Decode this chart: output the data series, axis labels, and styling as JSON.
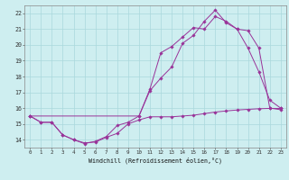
{
  "xlabel": "Windchill (Refroidissement éolien,°C)",
  "bg_color": "#ceeef0",
  "grid_color": "#aad8dc",
  "line_color": "#993399",
  "xlim": [
    -0.5,
    23.5
  ],
  "ylim": [
    13.5,
    22.5
  ],
  "ytick_vals": [
    14,
    15,
    16,
    17,
    18,
    19,
    20,
    21,
    22
  ],
  "ytick_labels": [
    "14",
    "15",
    "16",
    "17",
    "18",
    "19",
    "20",
    "21",
    "22"
  ],
  "xtick_vals": [
    0,
    1,
    2,
    3,
    4,
    5,
    6,
    7,
    8,
    9,
    10,
    11,
    12,
    13,
    14,
    15,
    16,
    17,
    18,
    19,
    20,
    21,
    22,
    23
  ],
  "xtick_labels": [
    "0",
    "1",
    "2",
    "3",
    "4",
    "5",
    "6",
    "7",
    "8",
    "9",
    "10",
    "11",
    "12",
    "13",
    "14",
    "15",
    "16",
    "17",
    "18",
    "19",
    "20",
    "21",
    "22",
    "23"
  ],
  "line1_x": [
    0,
    1,
    2,
    3,
    4,
    5,
    6,
    7,
    8,
    9,
    10,
    11,
    12,
    13,
    14,
    15,
    16,
    17,
    18,
    19,
    20,
    21,
    22,
    23
  ],
  "line1_y": [
    15.5,
    15.1,
    15.1,
    14.3,
    14.0,
    13.8,
    13.85,
    14.15,
    14.4,
    15.0,
    15.25,
    15.45,
    15.45,
    15.45,
    15.5,
    15.55,
    15.65,
    15.75,
    15.82,
    15.88,
    15.92,
    15.96,
    15.98,
    15.98
  ],
  "line2_x": [
    0,
    1,
    2,
    3,
    4,
    5,
    6,
    7,
    8,
    9,
    10,
    11,
    12,
    13,
    14,
    15,
    16,
    17,
    18,
    19,
    20,
    21,
    22,
    23
  ],
  "line2_y": [
    15.5,
    15.1,
    15.1,
    14.3,
    14.0,
    13.75,
    13.9,
    14.2,
    14.9,
    15.1,
    15.5,
    17.2,
    19.5,
    19.9,
    20.5,
    21.1,
    21.0,
    21.8,
    21.5,
    21.0,
    19.8,
    18.3,
    16.5,
    16.0
  ],
  "line3_x": [
    0,
    10,
    11,
    12,
    13,
    14,
    15,
    16,
    17,
    18,
    19,
    20,
    21,
    22,
    23
  ],
  "line3_y": [
    15.5,
    15.5,
    17.1,
    17.9,
    18.6,
    20.1,
    20.6,
    21.5,
    22.2,
    21.4,
    21.0,
    20.9,
    19.8,
    16.0,
    15.9
  ]
}
